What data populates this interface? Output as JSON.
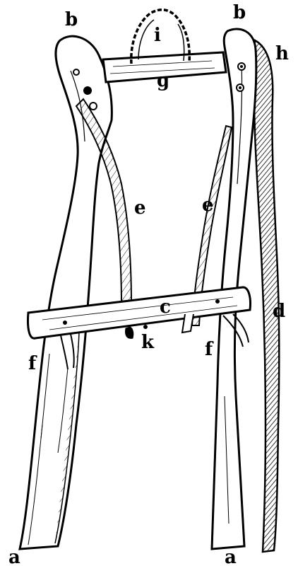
{
  "figure": {
    "labels": {
      "a_left": "a",
      "a_right": "a",
      "b_left": "b",
      "b_right": "b",
      "c": "c",
      "d": "d",
      "e_left": "e",
      "e_right": "e",
      "f_left": "f",
      "f_right": "f",
      "g": "g",
      "h": "h",
      "i": "i",
      "k": "k"
    },
    "colors": {
      "ink": "#000000",
      "paper": "#ffffff"
    }
  }
}
